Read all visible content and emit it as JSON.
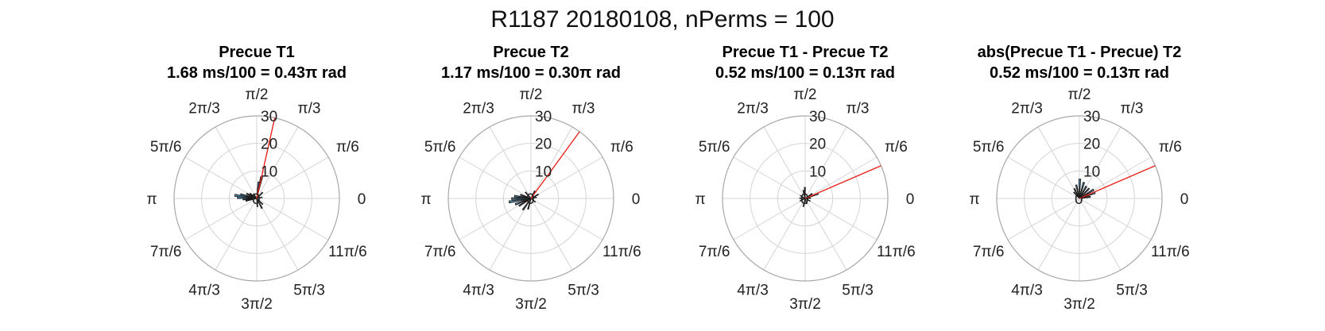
{
  "figure": {
    "title": "R1187 20180108, nPerms = 100"
  },
  "colors": {
    "bar_fill": "#5aa0d0",
    "bar_edge": "#1a1a1a",
    "mean_line": "#e8231c",
    "grid": "#d4d4d4",
    "outer_ring": "#a8a8a8"
  },
  "polar": {
    "angle_labels": [
      "0",
      "π/6",
      "π/3",
      "π/2",
      "2π/3",
      "5π/6",
      "π",
      "7π/6",
      "4π/3",
      "3π/2",
      "5π/3",
      "11π/6"
    ],
    "r_ticks": [
      "10",
      "20",
      "30"
    ]
  },
  "chart_data": [
    {
      "type": "polar-histogram",
      "title": "Precue T1",
      "subtitle": "1.68 ms/100 = 0.43π rad",
      "rlim": [
        0,
        30
      ],
      "mean_angle_rad": 1.351,
      "mean_line_r": 30,
      "bins": [
        {
          "angle": 2.9,
          "r": 6
        },
        {
          "angle": 3.0,
          "r": 8
        },
        {
          "angle": 3.1,
          "r": 7
        },
        {
          "angle": 3.2,
          "r": 5
        },
        {
          "angle": 3.35,
          "r": 4
        },
        {
          "angle": 2.7,
          "r": 4
        },
        {
          "angle": 2.5,
          "r": 3
        },
        {
          "angle": 1.45,
          "r": 6
        },
        {
          "angle": 1.35,
          "r": 8
        },
        {
          "angle": 0.2,
          "r": 2
        },
        {
          "angle": 4.8,
          "r": 3
        },
        {
          "angle": 5.2,
          "r": 4
        },
        {
          "angle": 5.5,
          "r": 3
        },
        {
          "angle": 0.8,
          "r": 3
        },
        {
          "angle": 2.2,
          "r": 2
        }
      ]
    },
    {
      "type": "polar-histogram",
      "title": "Precue T2",
      "subtitle": "1.17 ms/100 = 0.30π rad",
      "rlim": [
        0,
        30
      ],
      "mean_angle_rad": 0.942,
      "mean_line_r": 30,
      "bins": [
        {
          "angle": 3.0,
          "r": 6
        },
        {
          "angle": 3.15,
          "r": 7
        },
        {
          "angle": 3.3,
          "r": 8
        },
        {
          "angle": 3.5,
          "r": 6
        },
        {
          "angle": 3.7,
          "r": 5
        },
        {
          "angle": 4.1,
          "r": 5
        },
        {
          "angle": 4.45,
          "r": 4
        },
        {
          "angle": 2.8,
          "r": 4
        },
        {
          "angle": 1.1,
          "r": 3
        },
        {
          "angle": 0.5,
          "r": 3
        },
        {
          "angle": 0.2,
          "r": 2
        },
        {
          "angle": 5.6,
          "r": 2
        },
        {
          "angle": 2.3,
          "r": 3
        }
      ]
    },
    {
      "type": "polar-histogram",
      "title": "Precue T1 - Precue T2",
      "subtitle": "0.52 ms/100 = 0.13π rad",
      "rlim": [
        0,
        30
      ],
      "mean_angle_rad": 0.408,
      "mean_line_r": 30,
      "bins": [
        {
          "angle": 0.35,
          "r": 5
        },
        {
          "angle": 0.6,
          "r": 3
        },
        {
          "angle": 1.6,
          "r": 4
        },
        {
          "angle": 1.8,
          "r": 3
        },
        {
          "angle": 2.6,
          "r": 2
        },
        {
          "angle": 3.1,
          "r": 2
        },
        {
          "angle": 3.6,
          "r": 2
        },
        {
          "angle": 4.5,
          "r": 3
        },
        {
          "angle": 5.0,
          "r": 2
        },
        {
          "angle": 5.8,
          "r": 2
        },
        {
          "angle": 0.05,
          "r": 2
        }
      ]
    },
    {
      "type": "polar-histogram",
      "title": "abs(Precue T1 - Precue) T2",
      "subtitle": "0.52 ms/100 = 0.13π rad",
      "rlim": [
        0,
        30
      ],
      "mean_angle_rad": 0.408,
      "mean_line_r": 30,
      "bins": [
        {
          "angle": 0.15,
          "r": 4
        },
        {
          "angle": 0.35,
          "r": 6
        },
        {
          "angle": 0.55,
          "r": 6
        },
        {
          "angle": 0.8,
          "r": 5
        },
        {
          "angle": 1.05,
          "r": 5
        },
        {
          "angle": 1.3,
          "r": 6
        },
        {
          "angle": 1.55,
          "r": 7
        },
        {
          "angle": 1.8,
          "r": 5
        },
        {
          "angle": 2.05,
          "r": 4
        },
        {
          "angle": 2.3,
          "r": 3
        }
      ]
    }
  ]
}
